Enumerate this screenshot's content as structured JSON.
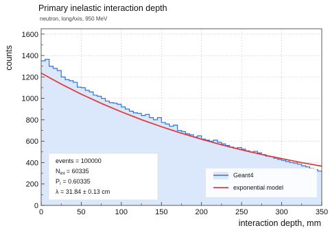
{
  "chart_data": {
    "type": "line",
    "title": "Primary inelastic interaction depth",
    "subtitle": "neutron, longAxis, 950 MeV",
    "xlabel": "interaction depth, mm",
    "ylabel": "counts",
    "xlim": [
      0,
      350
    ],
    "ylim": [
      0,
      1650
    ],
    "xticks": [
      0,
      50,
      100,
      150,
      200,
      250,
      300,
      350
    ],
    "yticks": [
      0,
      200,
      400,
      600,
      800,
      1000,
      1200,
      1400,
      1600
    ],
    "grid": true,
    "legend_position": "bottom-right",
    "colors": {
      "histogram_line": "#2f6fe0",
      "histogram_fill": "#dbe8fb",
      "model_line": "#e03c3c"
    },
    "series": [
      {
        "name": "Geant4",
        "kind": "step-histogram",
        "bin_width": 5,
        "bin_start": 0,
        "values": [
          1350,
          1365,
          1300,
          1280,
          1260,
          1200,
          1175,
          1165,
          1150,
          1105,
          1100,
          1075,
          1060,
          1030,
          1020,
          1000,
          975,
          960,
          955,
          945,
          920,
          900,
          880,
          865,
          860,
          840,
          850,
          820,
          800,
          820,
          775,
          760,
          740,
          750,
          700,
          690,
          670,
          660,
          640,
          650,
          620,
          610,
          600,
          610,
          590,
          575,
          560,
          545,
          535,
          540,
          525,
          510,
          500,
          505,
          490,
          475,
          460,
          455,
          440,
          430,
          420,
          410,
          400,
          395,
          385,
          370,
          360,
          345,
          335,
          320
        ]
      },
      {
        "name": "exponential model",
        "kind": "line",
        "x": [
          0,
          25,
          50,
          75,
          100,
          125,
          150,
          175,
          200,
          225,
          250,
          275,
          300,
          325,
          350
        ],
        "y": [
          1236,
          1133,
          1039,
          953,
          874,
          801,
          735,
          674,
          618,
          566,
          519,
          476,
          437,
          400,
          367
        ]
      }
    ],
    "stats_box": {
      "lines": [
        "events = 100000",
        "N_int = 60335",
        "P_I = 0.60335",
        "λ = 31.84 ± 0.13 cm"
      ]
    }
  }
}
